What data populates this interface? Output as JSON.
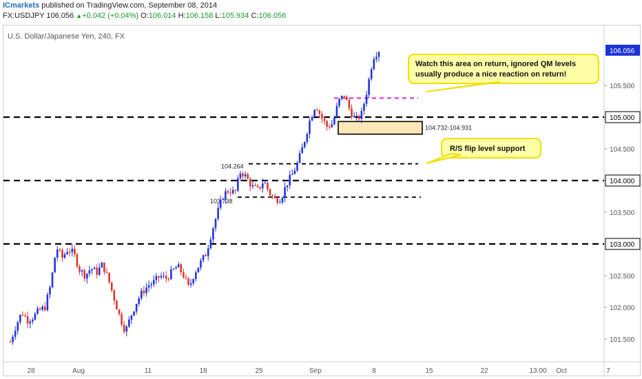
{
  "header": {
    "brand": "ICmarkets",
    "published": " published on TradingView.com, September 08, 2014",
    "symbol": "FX:USDJPY",
    "last": "106.056",
    "change": "+0.042 (+0.04%)",
    "o_label": "O:",
    "o_value": "106.014",
    "h_label": "H:",
    "h_value": "106.158",
    "l_label": "L:",
    "l_value": "105.934",
    "c_label": "C:",
    "c_value": "106.056"
  },
  "colors": {
    "bull": "#2233dd",
    "bear": "#e0342c",
    "callout_fill": "#ffffa8",
    "callout_border": "#f0e000",
    "zone_fill": "#fbe7b7",
    "magenta": "#e024e0",
    "price_tag": "#1a33d6"
  },
  "chart_data": {
    "type": "candlestick",
    "title": "U.S. Dollar/Japanese Yen, 240, FX",
    "x_tick_labels": [
      "28",
      "Aug",
      "11",
      "18",
      "25",
      "Sep",
      "8",
      "15",
      "22",
      "13:00",
      "Oct",
      "7"
    ],
    "y_tick_labels": [
      "106.056",
      "105.500",
      "105.000",
      "104.500",
      "104.000",
      "103.500",
      "103.000",
      "102.500",
      "102.000",
      "101.500"
    ],
    "ylim": [
      101.35,
      106.4
    ],
    "y_axis_ticks": [
      101.5,
      102.0,
      102.5,
      103.0,
      103.5,
      104.0,
      104.5,
      105.0,
      105.5
    ],
    "last_price": 106.056,
    "horizontal_levels": [
      {
        "price": 105.0,
        "label": "105.000",
        "style": "black-dashed-thick"
      },
      {
        "price": 104.0,
        "label": "104.000",
        "style": "black-dashed-thick"
      },
      {
        "price": 103.0,
        "label": "103.000",
        "style": "black-dashed-thick"
      },
      {
        "price": 105.3,
        "style": "magenta-dashed"
      },
      {
        "price": 104.264,
        "label": "104.264",
        "style": "black-dashed"
      },
      {
        "price": 103.738,
        "label": "103.738",
        "style": "black-dashed"
      }
    ],
    "zone": {
      "low": 104.732,
      "high": 104.931,
      "label": "104.732-104.931"
    },
    "annotations": [
      {
        "text_line1": "Watch this area on return, ignored QM levels",
        "text_line2": "usually produce a nice reaction on return!"
      },
      {
        "text_line1": "R/S flip level support"
      }
    ],
    "close_path": [
      101.45,
      101.72,
      101.92,
      101.8,
      101.85,
      101.95,
      102.0,
      102.35,
      102.95,
      102.78,
      102.92,
      102.85,
      102.6,
      102.5,
      102.62,
      102.55,
      102.68,
      102.45,
      102.15,
      101.85,
      101.62,
      101.88,
      102.1,
      102.25,
      102.35,
      102.4,
      102.5,
      102.45,
      102.55,
      102.65,
      102.52,
      102.3,
      102.55,
      102.7,
      102.85,
      103.2,
      103.5,
      103.78,
      103.85,
      103.8,
      104.15,
      104.05,
      103.9,
      103.85,
      104.0,
      103.8,
      103.7,
      103.72,
      103.95,
      104.1,
      104.3,
      104.6,
      104.95,
      105.2,
      105.0,
      104.85,
      104.9,
      105.25,
      105.35,
      105.1,
      104.95,
      105.05,
      105.45,
      105.95,
      106.056
    ]
  }
}
